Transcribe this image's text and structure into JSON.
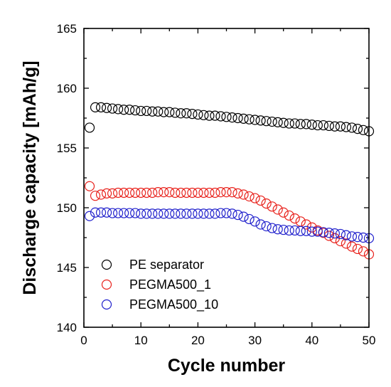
{
  "chart_data": {
    "type": "scatter",
    "xlabel": "Cycle number",
    "ylabel": "Discharge capacity [mAh/g]",
    "xlim": [
      0,
      50
    ],
    "ylim": [
      140,
      165
    ],
    "x_ticks": [
      0,
      10,
      20,
      30,
      40,
      50
    ],
    "y_ticks": [
      140,
      145,
      150,
      155,
      160,
      165
    ],
    "grid": false,
    "legend_position": "bottom-left",
    "marker": "open-circle",
    "series": [
      {
        "name": "PE separator",
        "color": "#000000",
        "x": [
          1,
          2,
          3,
          4,
          5,
          6,
          7,
          8,
          9,
          10,
          11,
          12,
          13,
          14,
          15,
          16,
          17,
          18,
          19,
          20,
          21,
          22,
          23,
          24,
          25,
          26,
          27,
          28,
          29,
          30,
          31,
          32,
          33,
          34,
          35,
          36,
          37,
          38,
          39,
          40,
          41,
          42,
          43,
          44,
          45,
          46,
          47,
          48,
          49,
          50
        ],
        "y": [
          156.7,
          158.4,
          158.4,
          158.35,
          158.3,
          158.25,
          158.2,
          158.2,
          158.15,
          158.1,
          158.1,
          158.05,
          158.05,
          158.0,
          158.0,
          157.95,
          157.9,
          157.9,
          157.85,
          157.8,
          157.75,
          157.7,
          157.7,
          157.65,
          157.6,
          157.55,
          157.5,
          157.45,
          157.4,
          157.35,
          157.3,
          157.25,
          157.2,
          157.15,
          157.1,
          157.05,
          157.05,
          157.0,
          157.0,
          156.95,
          156.9,
          156.9,
          156.85,
          156.8,
          156.8,
          156.75,
          156.7,
          156.6,
          156.5,
          156.4
        ]
      },
      {
        "name": "PEGMA500_1",
        "color": "#e8221c",
        "x": [
          1,
          2,
          3,
          4,
          5,
          6,
          7,
          8,
          9,
          10,
          11,
          12,
          13,
          14,
          15,
          16,
          17,
          18,
          19,
          20,
          21,
          22,
          23,
          24,
          25,
          26,
          27,
          28,
          29,
          30,
          31,
          32,
          33,
          34,
          35,
          36,
          37,
          38,
          39,
          40,
          41,
          42,
          43,
          44,
          45,
          46,
          47,
          48,
          49,
          50
        ],
        "y": [
          151.8,
          151.0,
          151.1,
          151.2,
          151.2,
          151.25,
          151.25,
          151.25,
          151.25,
          151.25,
          151.25,
          151.25,
          151.3,
          151.3,
          151.3,
          151.25,
          151.25,
          151.25,
          151.25,
          151.25,
          151.25,
          151.25,
          151.25,
          151.3,
          151.3,
          151.3,
          151.2,
          151.1,
          150.95,
          150.8,
          150.6,
          150.35,
          150.1,
          149.85,
          149.6,
          149.35,
          149.1,
          148.85,
          148.6,
          148.35,
          148.1,
          147.9,
          147.65,
          147.45,
          147.2,
          147.0,
          146.75,
          146.55,
          146.35,
          146.1
        ]
      },
      {
        "name": "PEGMA500_10",
        "color": "#2020cc",
        "x": [
          1,
          2,
          3,
          4,
          5,
          6,
          7,
          8,
          9,
          10,
          11,
          12,
          13,
          14,
          15,
          16,
          17,
          18,
          19,
          20,
          21,
          22,
          23,
          24,
          25,
          26,
          27,
          28,
          29,
          30,
          31,
          32,
          33,
          34,
          35,
          36,
          37,
          38,
          39,
          40,
          41,
          42,
          43,
          44,
          45,
          46,
          47,
          48,
          49,
          50
        ],
        "y": [
          149.3,
          149.6,
          149.6,
          149.6,
          149.55,
          149.55,
          149.55,
          149.55,
          149.55,
          149.5,
          149.5,
          149.5,
          149.5,
          149.5,
          149.5,
          149.5,
          149.5,
          149.5,
          149.5,
          149.5,
          149.5,
          149.5,
          149.5,
          149.55,
          149.55,
          149.5,
          149.4,
          149.25,
          149.05,
          148.85,
          148.6,
          148.45,
          148.3,
          148.2,
          148.15,
          148.1,
          148.1,
          148.05,
          148.05,
          148.0,
          148.0,
          147.95,
          147.9,
          147.85,
          147.8,
          147.7,
          147.6,
          147.55,
          147.5,
          147.45
        ]
      }
    ]
  }
}
